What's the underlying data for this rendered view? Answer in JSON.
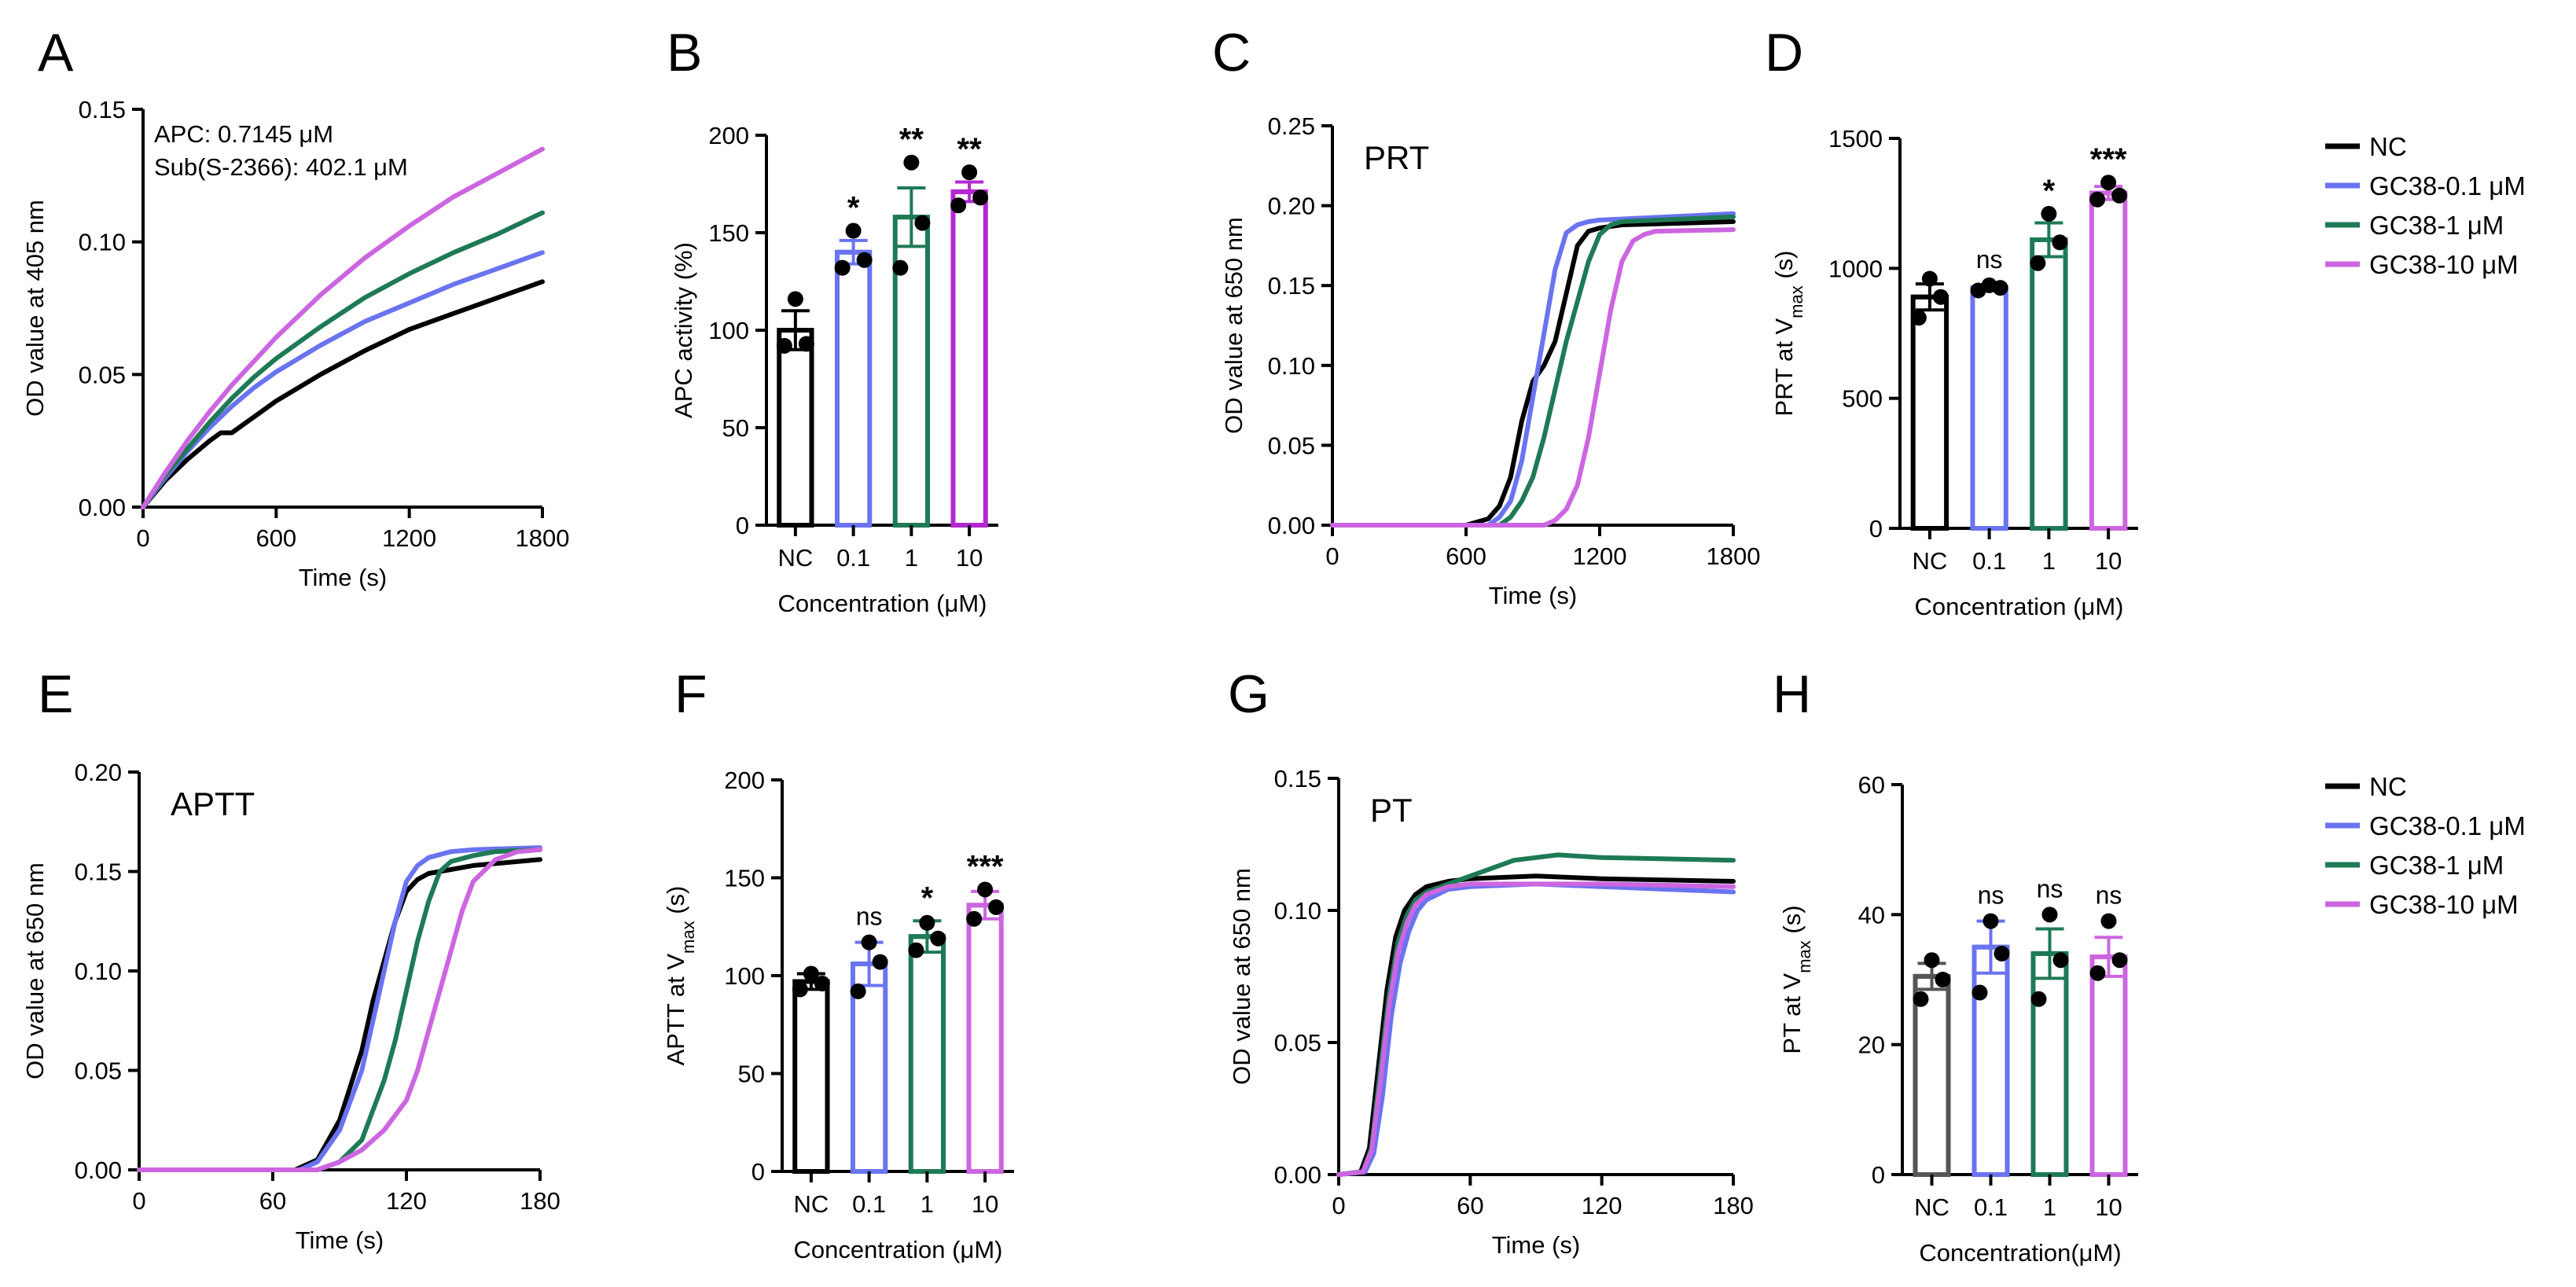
{
  "panels": {
    "A": {
      "letter": "A"
    },
    "B": {
      "letter": "B"
    },
    "C": {
      "letter": "C"
    },
    "D": {
      "letter": "D"
    },
    "E": {
      "letter": "E"
    },
    "F": {
      "letter": "F"
    },
    "G": {
      "letter": "G"
    },
    "H": {
      "letter": "H"
    }
  },
  "legend_top": {
    "entries": [
      {
        "label": "NC",
        "color": "#000000"
      },
      {
        "label": "GC38-0.1 μM",
        "color": "#6a73f0"
      },
      {
        "label": "GC38-1 μM",
        "color": "#1e7a55"
      },
      {
        "label": "GC38-10 μM",
        "color": "#cc66e0"
      }
    ]
  },
  "legend_bottom": {
    "entries": [
      {
        "label": "NC",
        "color": "#000000"
      },
      {
        "label": "GC38-0.1 μM",
        "color": "#6a73f0"
      },
      {
        "label": "GC38-1 μM",
        "color": "#1e7a55"
      },
      {
        "label": "GC38-10 μM",
        "color": "#cc66e0"
      }
    ]
  },
  "chart_data": [
    {
      "id": "A",
      "type": "line",
      "title": "",
      "xlabel": "Time (s)",
      "ylabel": "OD value at 405 nm",
      "xlim": [
        0,
        1800
      ],
      "ylim": [
        0,
        0.15
      ],
      "xticks": [
        "0",
        "600",
        "1200",
        "1800"
      ],
      "xtick_values": [
        0,
        600,
        1200,
        1800
      ],
      "yticks": [
        "0.00",
        "0.05",
        "0.10",
        "0.15"
      ],
      "ytick_values": [
        0,
        0.05,
        0.1,
        0.15
      ],
      "annotations": [
        "APC: 0.7145 μM",
        "Sub(S-2366): 402.1 μM"
      ],
      "series": [
        {
          "name": "NC",
          "color": "#000000",
          "x": [
            0,
            100,
            200,
            300,
            350,
            400,
            500,
            600,
            800,
            1000,
            1200,
            1400,
            1600,
            1800
          ],
          "y": [
            0,
            0.01,
            0.018,
            0.025,
            0.028,
            0.028,
            0.034,
            0.04,
            0.05,
            0.059,
            0.067,
            0.073,
            0.079,
            0.085
          ]
        },
        {
          "name": "GC38-0.1 μM",
          "color": "#6a73f0",
          "x": [
            0,
            100,
            200,
            300,
            400,
            500,
            600,
            800,
            1000,
            1200,
            1400,
            1600,
            1800
          ],
          "y": [
            0,
            0.011,
            0.021,
            0.03,
            0.038,
            0.045,
            0.051,
            0.061,
            0.07,
            0.077,
            0.084,
            0.09,
            0.096
          ]
        },
        {
          "name": "GC38-1 μM",
          "color": "#1e7a55",
          "x": [
            0,
            100,
            200,
            300,
            400,
            500,
            600,
            800,
            1000,
            1200,
            1400,
            1600,
            1800
          ],
          "y": [
            0,
            0.012,
            0.022,
            0.032,
            0.041,
            0.049,
            0.056,
            0.068,
            0.079,
            0.088,
            0.096,
            0.103,
            0.111
          ]
        },
        {
          "name": "GC38-10 μM",
          "color": "#cc66e0",
          "x": [
            0,
            100,
            200,
            300,
            400,
            500,
            600,
            800,
            1000,
            1200,
            1400,
            1600,
            1800
          ],
          "y": [
            0,
            0.013,
            0.025,
            0.036,
            0.046,
            0.055,
            0.064,
            0.08,
            0.094,
            0.106,
            0.117,
            0.126,
            0.135
          ]
        }
      ]
    },
    {
      "id": "B",
      "type": "bar",
      "xlabel": "Concentration (μM)",
      "ylabel": "APC activity (%)",
      "ylim": [
        0,
        200
      ],
      "yticks": [
        "0",
        "50",
        "100",
        "150",
        "200"
      ],
      "ytick_values": [
        0,
        50,
        100,
        150,
        200
      ],
      "categories": [
        "NC",
        "0.1",
        "1",
        "10"
      ],
      "colors": [
        "#000000",
        "#6a73f0",
        "#1e7a55",
        "#b328d0"
      ],
      "values": [
        100,
        140,
        158,
        171
      ],
      "errors": [
        10,
        6,
        15,
        5
      ],
      "points": [
        [
          92,
          93,
          116
        ],
        [
          132,
          136,
          151
        ],
        [
          132,
          155,
          186
        ],
        [
          164,
          168,
          181
        ]
      ],
      "significance": [
        "",
        "*",
        "**",
        "**"
      ]
    },
    {
      "id": "C",
      "type": "line",
      "title": "PRT",
      "xlabel": "Time (s)",
      "ylabel": "OD value at 650 nm",
      "xlim": [
        0,
        1800
      ],
      "ylim": [
        0,
        0.25
      ],
      "xticks": [
        "0",
        "600",
        "1200",
        "1800"
      ],
      "xtick_values": [
        0,
        600,
        1200,
        1800
      ],
      "yticks": [
        "0.00",
        "0.05",
        "0.10",
        "0.15",
        "0.20",
        "0.25"
      ],
      "ytick_values": [
        0,
        0.05,
        0.1,
        0.15,
        0.2,
        0.25
      ],
      "series": [
        {
          "name": "NC",
          "color": "#000000",
          "x": [
            0,
            600,
            700,
            750,
            800,
            850,
            900,
            950,
            1000,
            1050,
            1100,
            1150,
            1200,
            1300,
            1800
          ],
          "y": [
            0,
            0.0,
            0.004,
            0.012,
            0.03,
            0.065,
            0.09,
            0.1,
            0.115,
            0.145,
            0.175,
            0.184,
            0.186,
            0.188,
            0.19
          ]
        },
        {
          "name": "GC38-0.1 μM",
          "color": "#6a73f0",
          "x": [
            0,
            700,
            750,
            800,
            850,
            900,
            950,
            1000,
            1050,
            1100,
            1150,
            1200,
            1800
          ],
          "y": [
            0,
            0.0,
            0.005,
            0.015,
            0.04,
            0.08,
            0.12,
            0.16,
            0.183,
            0.188,
            0.19,
            0.191,
            0.195
          ]
        },
        {
          "name": "GC38-1 μM",
          "color": "#1e7a55",
          "x": [
            0,
            750,
            800,
            850,
            900,
            950,
            1000,
            1050,
            1100,
            1150,
            1200,
            1250,
            1300,
            1800
          ],
          "y": [
            0,
            0.0,
            0.005,
            0.015,
            0.03,
            0.055,
            0.085,
            0.115,
            0.14,
            0.165,
            0.182,
            0.188,
            0.19,
            0.193
          ]
        },
        {
          "name": "GC38-10 μM",
          "color": "#cc66e0",
          "x": [
            0,
            950,
            1000,
            1050,
            1100,
            1150,
            1200,
            1250,
            1300,
            1350,
            1400,
            1450,
            1800
          ],
          "y": [
            0,
            0.0,
            0.003,
            0.01,
            0.025,
            0.055,
            0.095,
            0.135,
            0.165,
            0.178,
            0.182,
            0.184,
            0.185
          ]
        }
      ]
    },
    {
      "id": "D",
      "type": "bar",
      "xlabel": "Concentration (μM)",
      "ylabel": "PRT at V",
      "ylabel_sub": "max",
      "ylabel_tail": " (s)",
      "ylim": [
        0,
        1500
      ],
      "yticks": [
        "0",
        "500",
        "1000",
        "1500"
      ],
      "ytick_values": [
        0,
        500,
        1000,
        1500
      ],
      "categories": [
        "NC",
        "0.1",
        "1",
        "10"
      ],
      "colors": [
        "#000000",
        "#6a73f0",
        "#1e7a55",
        "#cc66e0"
      ],
      "values": [
        890,
        925,
        1110,
        1290
      ],
      "errors": [
        50,
        8,
        65,
        25
      ],
      "points": [
        [
          810,
          890,
          960
        ],
        [
          915,
          925,
          935
        ],
        [
          1020,
          1100,
          1210
        ],
        [
          1265,
          1280,
          1330
        ]
      ],
      "significance": [
        "",
        "ns",
        "*",
        "***"
      ]
    },
    {
      "id": "E",
      "type": "line",
      "title": "APTT",
      "xlabel": "Time (s)",
      "ylabel": "OD value at 650 nm",
      "xlim": [
        0,
        180
      ],
      "ylim": [
        0,
        0.2
      ],
      "xticks": [
        "0",
        "60",
        "120",
        "180"
      ],
      "xtick_values": [
        0,
        60,
        120,
        180
      ],
      "yticks": [
        "0.00",
        "0.05",
        "0.10",
        "0.15",
        "0.20"
      ],
      "ytick_values": [
        0,
        0.05,
        0.1,
        0.15,
        0.2
      ],
      "series": [
        {
          "name": "NC",
          "color": "#000000",
          "x": [
            0,
            70,
            80,
            90,
            100,
            105,
            110,
            115,
            120,
            125,
            130,
            140,
            150,
            160,
            180
          ],
          "y": [
            0,
            0.0,
            0.005,
            0.025,
            0.06,
            0.085,
            0.105,
            0.125,
            0.14,
            0.146,
            0.149,
            0.151,
            0.153,
            0.154,
            0.156
          ]
        },
        {
          "name": "GC38-0.1 μM",
          "color": "#6a73f0",
          "x": [
            0,
            72,
            80,
            90,
            100,
            105,
            110,
            115,
            120,
            125,
            130,
            140,
            150,
            180
          ],
          "y": [
            0,
            0.0,
            0.004,
            0.02,
            0.05,
            0.075,
            0.1,
            0.125,
            0.145,
            0.153,
            0.157,
            0.16,
            0.161,
            0.162
          ]
        },
        {
          "name": "GC38-1 μM",
          "color": "#1e7a55",
          "x": [
            0,
            80,
            90,
            100,
            110,
            115,
            120,
            125,
            130,
            135,
            140,
            150,
            160,
            180
          ],
          "y": [
            0,
            0.0,
            0.004,
            0.015,
            0.045,
            0.065,
            0.09,
            0.115,
            0.135,
            0.15,
            0.155,
            0.158,
            0.16,
            0.161
          ]
        },
        {
          "name": "GC38-10 μM",
          "color": "#cc66e0",
          "x": [
            0,
            80,
            90,
            100,
            110,
            120,
            125,
            130,
            135,
            140,
            145,
            150,
            160,
            170,
            180
          ],
          "y": [
            0,
            0.0,
            0.004,
            0.01,
            0.02,
            0.035,
            0.05,
            0.07,
            0.09,
            0.11,
            0.13,
            0.145,
            0.156,
            0.16,
            0.161
          ]
        }
      ]
    },
    {
      "id": "F",
      "type": "bar",
      "xlabel": "Concentration (μM)",
      "ylabel": "APTT at V",
      "ylabel_sub": "max",
      "ylabel_tail": " (s)",
      "ylim": [
        0,
        200
      ],
      "yticks": [
        "0",
        "50",
        "100",
        "150",
        "200"
      ],
      "ytick_values": [
        0,
        50,
        100,
        150,
        200
      ],
      "categories": [
        "NC",
        "0.1",
        "1",
        "10"
      ],
      "colors": [
        "#000000",
        "#6a73f0",
        "#1e7a55",
        "#cc66e0"
      ],
      "values": [
        97,
        106,
        120,
        136
      ],
      "errors": [
        4,
        11,
        8,
        7
      ],
      "points": [
        [
          93,
          96,
          101
        ],
        [
          92,
          107,
          117
        ],
        [
          113,
          119,
          127
        ],
        [
          129,
          135,
          144
        ]
      ],
      "significance": [
        "",
        "ns",
        "*",
        "***"
      ]
    },
    {
      "id": "G",
      "type": "line",
      "title": "PT",
      "xlabel": "Time (s)",
      "ylabel": "OD value at 650 nm",
      "xlim": [
        0,
        180
      ],
      "ylim": [
        0,
        0.15
      ],
      "xticks": [
        "0",
        "60",
        "120",
        "180"
      ],
      "xtick_values": [
        0,
        60,
        120,
        180
      ],
      "yticks": [
        "0.00",
        "0.05",
        "0.10",
        "0.15"
      ],
      "ytick_values": [
        0,
        0.05,
        0.1,
        0.15
      ],
      "series": [
        {
          "name": "NC",
          "color": "#000000",
          "x": [
            0,
            10,
            14,
            18,
            22,
            26,
            30,
            35,
            40,
            50,
            60,
            90,
            120,
            180
          ],
          "y": [
            0,
            0.001,
            0.01,
            0.04,
            0.07,
            0.09,
            0.1,
            0.106,
            0.109,
            0.111,
            0.112,
            0.113,
            0.112,
            0.111
          ]
        },
        {
          "name": "GC38-0.1 μM",
          "color": "#6a73f0",
          "x": [
            0,
            12,
            16,
            20,
            24,
            28,
            32,
            36,
            40,
            50,
            60,
            90,
            120,
            180
          ],
          "y": [
            0,
            0.001,
            0.008,
            0.03,
            0.06,
            0.08,
            0.092,
            0.1,
            0.104,
            0.108,
            0.109,
            0.11,
            0.109,
            0.107
          ]
        },
        {
          "name": "GC38-1 μM",
          "color": "#1e7a55",
          "x": [
            0,
            11,
            15,
            19,
            23,
            27,
            31,
            35,
            40,
            50,
            60,
            80,
            100,
            120,
            180
          ],
          "y": [
            0,
            0.001,
            0.01,
            0.04,
            0.068,
            0.088,
            0.098,
            0.104,
            0.107,
            0.11,
            0.113,
            0.119,
            0.121,
            0.12,
            0.119
          ]
        },
        {
          "name": "GC38-10 μM",
          "color": "#cc66e0",
          "x": [
            0,
            11,
            15,
            19,
            23,
            27,
            31,
            35,
            40,
            50,
            60,
            90,
            120,
            180
          ],
          "y": [
            0,
            0.001,
            0.009,
            0.035,
            0.064,
            0.084,
            0.095,
            0.102,
            0.106,
            0.109,
            0.11,
            0.11,
            0.11,
            0.109
          ]
        }
      ]
    },
    {
      "id": "H",
      "type": "bar",
      "xlabel": "Concentration(μM)",
      "ylabel": "PT at V",
      "ylabel_sub": "max",
      "ylabel_tail": " (s)",
      "ylim": [
        0,
        60
      ],
      "yticks": [
        "0",
        "20",
        "40",
        "60"
      ],
      "ytick_values": [
        0,
        20,
        40,
        60
      ],
      "categories": [
        "NC",
        "0.1",
        "1",
        "10"
      ],
      "colors": [
        "#555555",
        "#6a73f0",
        "#1e7a55",
        "#cc66e0"
      ],
      "values": [
        30.5,
        35,
        34,
        33.5
      ],
      "errors": [
        2,
        4,
        3.8,
        3
      ],
      "points": [
        [
          27,
          30,
          33
        ],
        [
          28,
          34,
          39
        ],
        [
          27,
          33,
          40
        ],
        [
          31,
          33,
          39
        ]
      ],
      "significance": [
        "",
        "ns",
        "ns",
        "ns"
      ]
    }
  ]
}
